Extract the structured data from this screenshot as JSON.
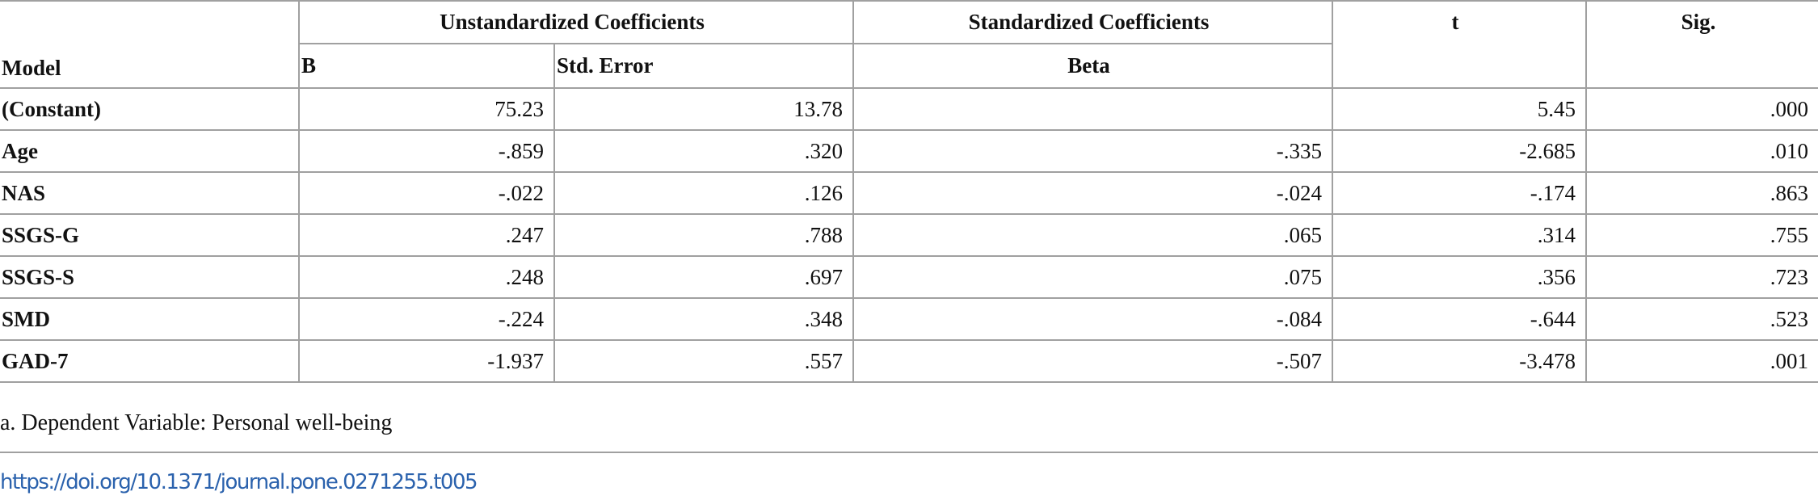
{
  "table": {
    "header": {
      "group_unstandardized": "Unstandardized Coefficients",
      "group_standardized": "Standardized Coefficients",
      "t": "t",
      "sig": "Sig.",
      "model": "Model",
      "b": "B",
      "std_error": "Std. Error",
      "beta": "Beta"
    },
    "rows": [
      [
        "(Constant)",
        "75.23",
        "13.78",
        null,
        "5.45",
        ".000"
      ],
      [
        "Age",
        "-.859",
        ".320",
        "-.335",
        "-2.685",
        ".010"
      ],
      [
        "NAS",
        "-.022",
        ".126",
        "-.024",
        "-.174",
        ".863"
      ],
      [
        "SSGS-G",
        ".247",
        ".788",
        ".065",
        ".314",
        ".755"
      ],
      [
        "SSGS-S",
        ".248",
        ".697",
        ".075",
        ".356",
        ".723"
      ],
      [
        "SMD",
        "-.224",
        ".348",
        "-.084",
        "-.644",
        ".523"
      ],
      [
        "GAD-7",
        "-1.937",
        ".557",
        "-.507",
        "-3.478",
        ".001"
      ]
    ],
    "footnote": "a. Dependent Variable: Personal well-being",
    "doi": "https://doi.org/10.1371/journal.pone.0271255.t005"
  }
}
